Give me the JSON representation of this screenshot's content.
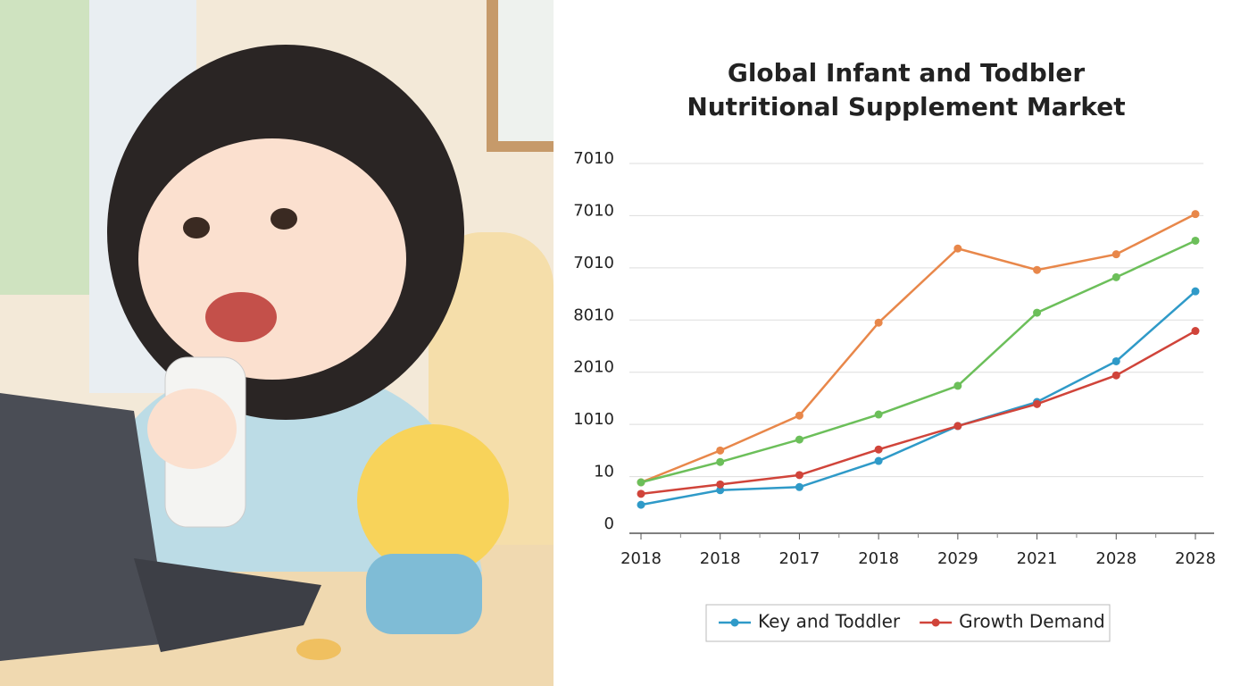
{
  "chart_data": {
    "type": "line",
    "title": [
      "Global Infant and Todbler",
      "Nutritional Supplement Market"
    ],
    "categories": [
      "2018",
      "2018",
      "2017",
      "2018",
      "2029",
      "2021",
      "2028",
      "2028"
    ],
    "ylim": [
      0,
      7.5
    ],
    "yticks": [
      {
        "value": 0,
        "label": "0"
      },
      {
        "value": 1,
        "label": "10"
      },
      {
        "value": 2,
        "label": "1010"
      },
      {
        "value": 3,
        "label": "2010"
      },
      {
        "value": 4,
        "label": "8010"
      },
      {
        "value": 5,
        "label": "7010"
      },
      {
        "value": 6,
        "label": "7010"
      },
      {
        "value": 7,
        "label": "7010"
      }
    ],
    "grid": true,
    "legend": "bottom",
    "series": [
      {
        "color": "#e8874a",
        "values": [
          0.89,
          1.5,
          2.17,
          3.95,
          5.37,
          4.96,
          5.26,
          6.03
        ]
      },
      {
        "color": "#6cbf5a",
        "values": [
          0.89,
          1.28,
          1.71,
          2.19,
          2.74,
          4.14,
          4.82,
          5.52
        ]
      },
      {
        "name": "Key and Toddler",
        "color": "#2f9ac8",
        "values": [
          0.46,
          0.74,
          0.8,
          1.3,
          1.97,
          2.43,
          3.21,
          4.55
        ]
      },
      {
        "name": "Growth Demand",
        "color": "#d0443a",
        "values": [
          0.67,
          0.85,
          1.03,
          1.52,
          1.97,
          2.39,
          2.94,
          3.79
        ]
      }
    ]
  }
}
